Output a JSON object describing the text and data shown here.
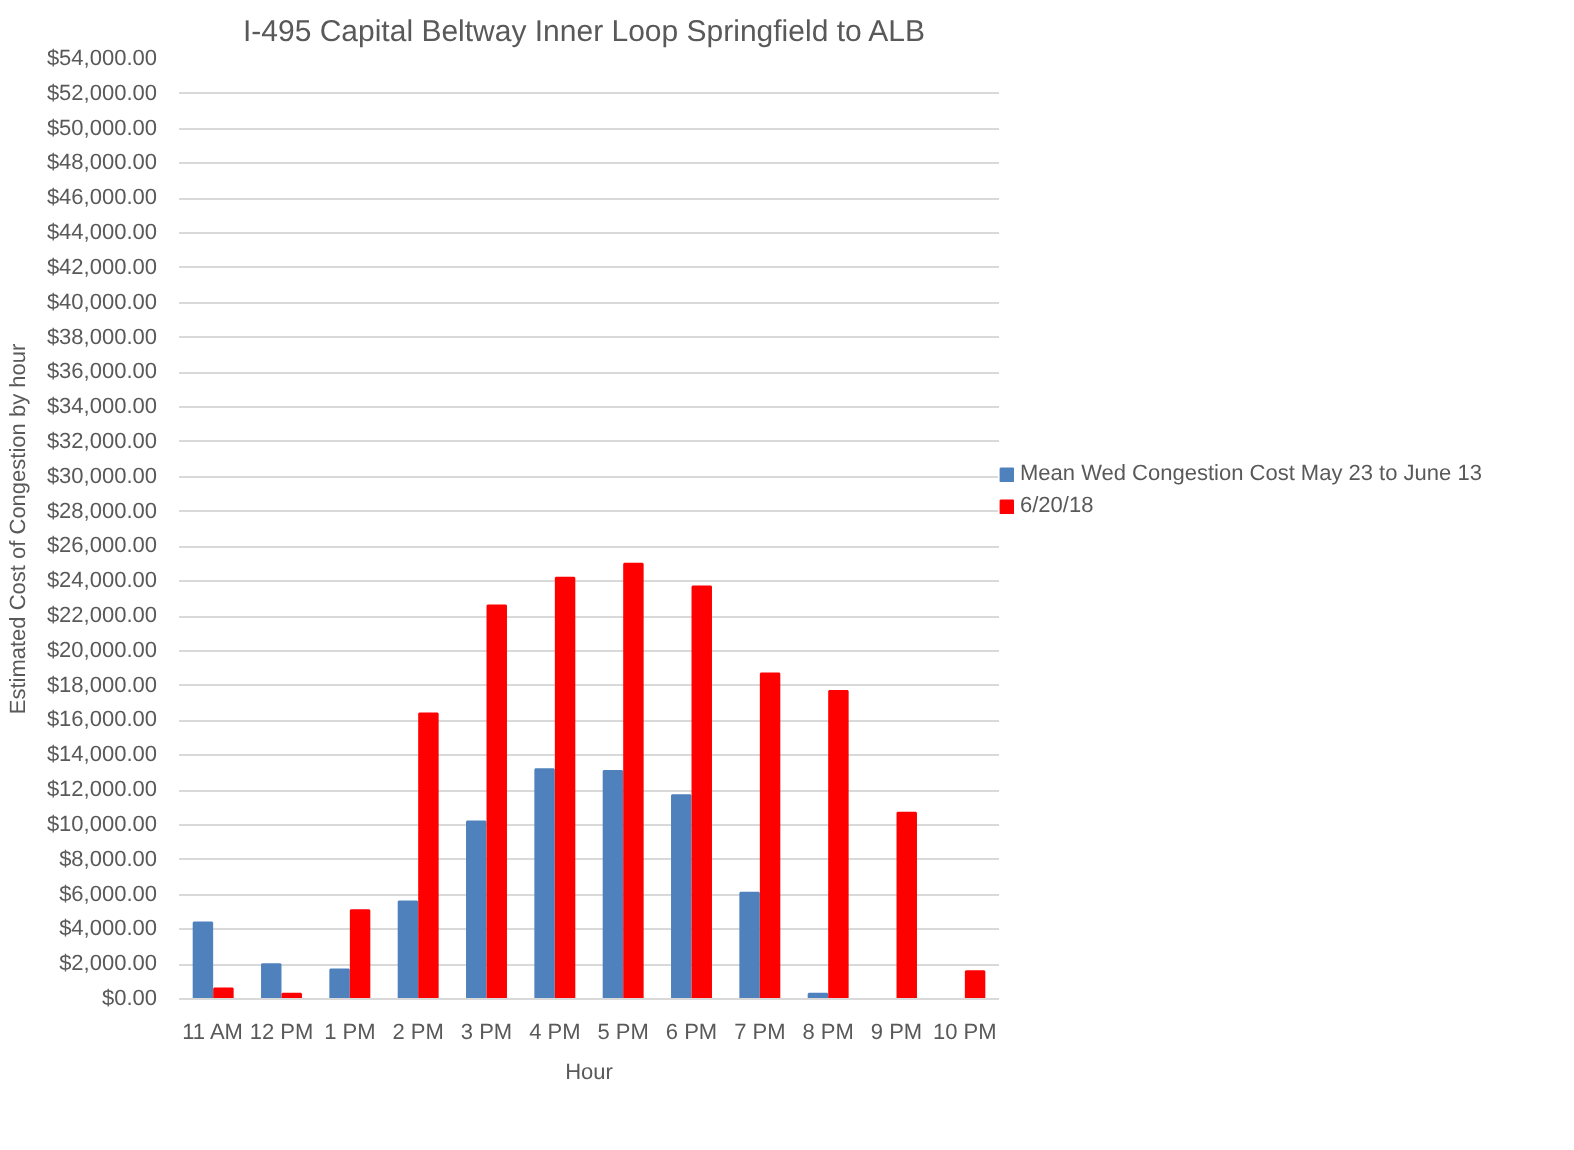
{
  "chart_data": {
    "type": "bar",
    "title": "I-495 Capital Beltway Inner Loop  Springfield to ALB",
    "xlabel": "Hour",
    "ylabel": "Estimated Cost of Congestion by hour",
    "categories": [
      "11 AM",
      "12 PM",
      "1 PM",
      "2 PM",
      "3 PM",
      "4 PM",
      "5 PM",
      "6 PM",
      "7 PM",
      "8 PM",
      "9 PM",
      "10 PM"
    ],
    "series": [
      {
        "name": "Mean Wed Congestion Cost May 23 to June 13",
        "color": "#4f81bd",
        "values": [
          4400,
          2000,
          1700,
          5600,
          10200,
          13200,
          13100,
          11700,
          6100,
          300,
          0,
          0
        ]
      },
      {
        "name": "6/20/18",
        "color": "#ff0000",
        "values": [
          600,
          300,
          5100,
          16400,
          22600,
          24200,
          25000,
          23700,
          18700,
          17700,
          10700,
          1600
        ]
      }
    ],
    "ylim": [
      0,
      54000
    ],
    "yticks": [
      {
        "value": 0,
        "label": "$0.00"
      },
      {
        "value": 2000,
        "label": "$2,000.00"
      },
      {
        "value": 4000,
        "label": "$4,000.00"
      },
      {
        "value": 6000,
        "label": "$6,000.00"
      },
      {
        "value": 8000,
        "label": "$8,000.00"
      },
      {
        "value": 10000,
        "label": "$10,000.00"
      },
      {
        "value": 12000,
        "label": "$12,000.00"
      },
      {
        "value": 14000,
        "label": "$14,000.00"
      },
      {
        "value": 16000,
        "label": "$16,000.00"
      },
      {
        "value": 18000,
        "label": "$18,000.00"
      },
      {
        "value": 20000,
        "label": "$20,000.00"
      },
      {
        "value": 22000,
        "label": "$22,000.00"
      },
      {
        "value": 24000,
        "label": "$24,000.00"
      },
      {
        "value": 26000,
        "label": "$26,000.00"
      },
      {
        "value": 28000,
        "label": "$28,000.00"
      },
      {
        "value": 30000,
        "label": "$30,000.00"
      },
      {
        "value": 32000,
        "label": "$32,000.00"
      },
      {
        "value": 34000,
        "label": "$34,000.00"
      },
      {
        "value": 36000,
        "label": "$36,000.00"
      },
      {
        "value": 38000,
        "label": "$38,000.00"
      },
      {
        "value": 40000,
        "label": "$40,000.00"
      },
      {
        "value": 42000,
        "label": "$42,000.00"
      },
      {
        "value": 44000,
        "label": "$44,000.00"
      },
      {
        "value": 46000,
        "label": "$46,000.00"
      },
      {
        "value": 48000,
        "label": "$48,000.00"
      },
      {
        "value": 50000,
        "label": "$50,000.00"
      },
      {
        "value": 52000,
        "label": "$52,000.00"
      },
      {
        "value": 54000,
        "label": "$54,000.00"
      }
    ],
    "grid": "y",
    "legend": "right"
  }
}
